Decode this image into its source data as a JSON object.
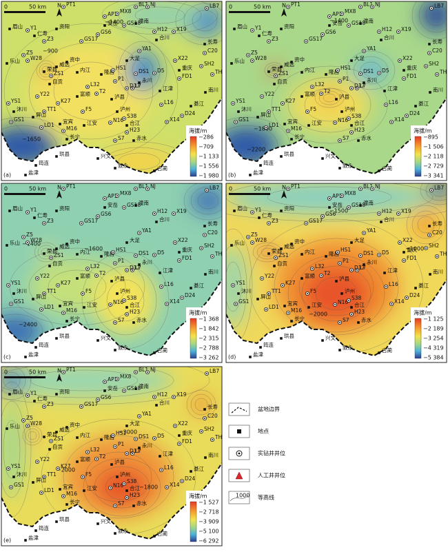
{
  "scale": {
    "zero": "0",
    "length": "50 km",
    "north": "N"
  },
  "places": [
    "眉山",
    "Y1",
    "资阳",
    "仁寿",
    "Z3",
    "GS17",
    "AP1",
    "MX8",
    "安岳",
    "GS18",
    "GS6",
    "潼南",
    "H12",
    "合川",
    "X19",
    "LB7",
    "BL1",
    "NJ",
    "PT1",
    "Z5",
    "乐山",
    "W28",
    "资中",
    "威远",
    "荣县",
    "ZS1",
    "内江",
    "YA1",
    "大足",
    "X22",
    "重庆",
    "长寿",
    "C20",
    "SH2",
    "TH1",
    "FD1",
    "隆昌",
    "HS1",
    "DS1",
    "D5",
    "永川",
    "自贡",
    "L32",
    "P1",
    "L7",
    "江津",
    "南川",
    "T2",
    "泸县",
    "D17",
    "Y22",
    "富顺",
    "K27",
    "L16",
    "綦江",
    "YS1",
    "沐川",
    "GS1",
    "TT1",
    "F5",
    "泸州",
    "屏山",
    "宜宾",
    "江安",
    "N16",
    "S38",
    "合江",
    "X14",
    "D24",
    "LD1",
    "M16",
    "H23",
    "长宁",
    "S7",
    "赤水",
    "珙县",
    "兴文",
    "叙永",
    "古蔺",
    "筠连",
    "盐津"
  ],
  "panels": [
    {
      "label": "(a)",
      "legend_title": "海拔/m",
      "legend_labels": [
        "−286",
        "−709",
        "−1 133",
        "−1 556",
        "−1 980"
      ],
      "contour_labels": [
        "−900",
        "−1400",
        "−1650"
      ]
    },
    {
      "label": "(b)",
      "legend_title": "海拔/m",
      "legend_labels": [
        "−895",
        "−1 506",
        "−2 118",
        "−2 729",
        "−3 341"
      ],
      "contour_labels": [
        "−1400",
        "−1800",
        "−2200"
      ]
    },
    {
      "label": "(c)",
      "legend_title": "海拔/m",
      "legend_labels": [
        "−1 368",
        "−1 842",
        "−2 315",
        "−2 788",
        "−3 262"
      ],
      "contour_labels": [
        "−1400",
        "−1600",
        "−2400"
      ]
    },
    {
      "label": "(d)",
      "legend_title": "海拔/m",
      "legend_labels": [
        "−1 125",
        "−2 189",
        "−3 254",
        "−4 319",
        "−5 384"
      ],
      "contour_labels": [
        "−1500",
        "−1000",
        "−2000"
      ]
    },
    {
      "label": "(e)",
      "legend_title": "海拔/m",
      "legend_labels": [
        "−1 527",
        "−2 718",
        "−3 909",
        "−5 100",
        "−6 292"
      ],
      "contour_labels": [
        "−2000",
        "−1800",
        "−3000"
      ]
    }
  ],
  "legend": {
    "items": [
      "盆地边界",
      "地点",
      "实钻井井位",
      "人工井井位",
      "等高线"
    ],
    "contour_sample": "1000"
  }
}
